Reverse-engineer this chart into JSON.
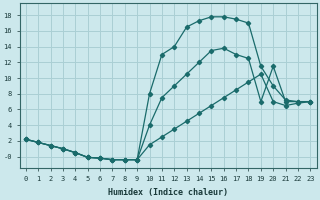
{
  "xlabel": "Humidex (Indice chaleur)",
  "bg_color": "#cce8ec",
  "grid_color": "#aacfd4",
  "line_color": "#1a6b6b",
  "xlim": [
    -0.5,
    23.5
  ],
  "ylim": [
    -1.5,
    19.5
  ],
  "xticks": [
    0,
    1,
    2,
    3,
    4,
    5,
    6,
    7,
    8,
    9,
    10,
    11,
    12,
    13,
    14,
    15,
    16,
    17,
    18,
    19,
    20,
    21,
    22,
    23
  ],
  "yticks": [
    0,
    2,
    4,
    6,
    8,
    10,
    12,
    14,
    16,
    18
  ],
  "ytick_labels": [
    "-0",
    "2",
    "4",
    "6",
    "8",
    "10",
    "12",
    "14",
    "16",
    "18"
  ],
  "line1_x": [
    0,
    1,
    2,
    3,
    4,
    5,
    6,
    7,
    8,
    9,
    10,
    11,
    12,
    13,
    14,
    15,
    16,
    17,
    18,
    19,
    20,
    21,
    22,
    23
  ],
  "line1_y": [
    2.2,
    1.8,
    1.4,
    1.0,
    0.5,
    -0.1,
    -0.2,
    -0.4,
    -0.4,
    -0.4,
    8.0,
    13.0,
    14.0,
    16.5,
    17.3,
    17.8,
    17.8,
    17.5,
    17.0,
    11.5,
    9.0,
    7.2,
    7.0,
    7.0
  ],
  "line2_x": [
    0,
    1,
    2,
    3,
    4,
    5,
    6,
    7,
    8,
    9,
    10,
    11,
    12,
    13,
    14,
    15,
    16,
    17,
    18,
    19,
    20,
    21,
    22,
    23
  ],
  "line2_y": [
    2.2,
    1.8,
    1.4,
    1.0,
    0.5,
    -0.1,
    -0.2,
    -0.4,
    -0.4,
    -0.4,
    4.0,
    7.5,
    9.0,
    10.5,
    12.0,
    13.5,
    13.8,
    13.0,
    12.5,
    7.0,
    11.5,
    7.0,
    7.0,
    7.0
  ],
  "line3_x": [
    0,
    1,
    2,
    3,
    4,
    5,
    6,
    7,
    8,
    9,
    10,
    11,
    12,
    13,
    14,
    15,
    16,
    17,
    18,
    19,
    20,
    21,
    22,
    23
  ],
  "line3_y": [
    2.2,
    1.8,
    1.4,
    1.0,
    0.5,
    -0.1,
    -0.2,
    -0.4,
    -0.4,
    -0.4,
    1.5,
    2.5,
    3.5,
    4.5,
    5.5,
    6.5,
    7.5,
    8.5,
    9.5,
    10.5,
    7.0,
    6.5,
    6.8,
    7.0
  ]
}
